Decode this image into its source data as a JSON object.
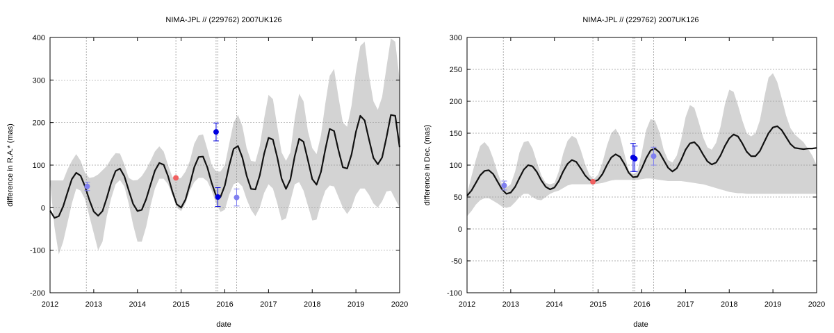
{
  "chart_data": [
    {
      "type": "line",
      "title": "NIMA-JPL // (229762) 2007UK126",
      "xlabel": "date",
      "ylabel": "difference in R.A.* (mas)",
      "xlim": [
        2012,
        2020
      ],
      "ylim": [
        -200,
        400
      ],
      "xticks": [
        2012,
        2013,
        2014,
        2015,
        2016,
        2017,
        2018,
        2019,
        2020
      ],
      "yticks": [
        -200,
        -100,
        0,
        100,
        200,
        300,
        400
      ],
      "grid": true,
      "legend": "none",
      "colors": {
        "band": "#d3d3d3",
        "line": "#111111",
        "obs_dark": "#0000e0",
        "obs_light": "#8080f0",
        "ref": "#f06060"
      },
      "vlines": [
        2012.83,
        2014.88,
        2015.8,
        2015.84,
        2016.27
      ],
      "model": {
        "x": [
          2012.0,
          2012.1,
          2012.2,
          2012.3,
          2012.4,
          2012.5,
          2012.6,
          2012.7,
          2012.8,
          2012.9,
          2013.0,
          2013.1,
          2013.2,
          2013.3,
          2013.4,
          2013.5,
          2013.6,
          2013.7,
          2013.8,
          2013.9,
          2014.0,
          2014.1,
          2014.2,
          2014.3,
          2014.4,
          2014.5,
          2014.6,
          2014.7,
          2014.8,
          2014.9,
          2015.0,
          2015.1,
          2015.2,
          2015.3,
          2015.4,
          2015.5,
          2015.6,
          2015.7,
          2015.8,
          2015.9,
          2016.0,
          2016.1,
          2016.2,
          2016.3,
          2016.4,
          2016.5,
          2016.6,
          2016.7,
          2016.8,
          2016.9,
          2017.0,
          2017.1,
          2017.2,
          2017.3,
          2017.4,
          2017.5,
          2017.6,
          2017.7,
          2017.8,
          2017.9,
          2018.0,
          2018.1,
          2018.2,
          2018.3,
          2018.4,
          2018.5,
          2018.6,
          2018.7,
          2018.8,
          2018.9,
          2019.0,
          2019.1,
          2019.2,
          2019.3,
          2019.4,
          2019.5,
          2019.6,
          2019.7,
          2019.8,
          2019.9,
          2020.0
        ],
        "y": [
          -7,
          -24,
          -20,
          3,
          36,
          67,
          82,
          75,
          50,
          18,
          -9,
          -19,
          -8,
          23,
          59,
          86,
          92,
          74,
          41,
          9,
          -8,
          -5,
          20,
          54,
          87,
          105,
          101,
          74,
          38,
          8,
          0,
          19,
          55,
          95,
          119,
          120,
          95,
          58,
          28,
          25,
          52,
          99,
          138,
          145,
          118,
          75,
          44,
          43,
          76,
          127,
          164,
          160,
          118,
          68,
          44,
          66,
          121,
          162,
          155,
          112,
          67,
          54,
          84,
          137,
          185,
          180,
          135,
          95,
          92,
          125,
          178,
          216,
          205,
          160,
          117,
          102,
          118,
          165,
          218,
          216,
          142
        ]
      },
      "band": {
        "upper": [
          64,
          64,
          64,
          64,
          90,
          110,
          126,
          110,
          82,
          70,
          72,
          78,
          88,
          98,
          115,
          128,
          127,
          102,
          70,
          64,
          65,
          74,
          90,
          110,
          132,
          144,
          132,
          100,
          72,
          68,
          70,
          85,
          110,
          150,
          170,
          172,
          138,
          100,
          85,
          85,
          100,
          150,
          200,
          218,
          192,
          140,
          110,
          108,
          145,
          210,
          265,
          255,
          190,
          130,
          110,
          130,
          210,
          268,
          250,
          180,
          140,
          126,
          170,
          245,
          310,
          326,
          260,
          200,
          190,
          240,
          320,
          380,
          390,
          310,
          250,
          230,
          260,
          330,
          398,
          390,
          300
        ],
        "lower": [
          62,
          -45,
          -110,
          -80,
          -35,
          10,
          45,
          40,
          20,
          -20,
          -60,
          -100,
          -80,
          -20,
          22,
          55,
          65,
          50,
          10,
          -40,
          -80,
          -80,
          -45,
          5,
          45,
          68,
          68,
          55,
          30,
          0,
          -8,
          10,
          40,
          60,
          70,
          70,
          62,
          40,
          10,
          -10,
          -5,
          30,
          55,
          60,
          50,
          20,
          -5,
          -20,
          0,
          35,
          55,
          45,
          10,
          -30,
          -25,
          15,
          55,
          60,
          40,
          5,
          -30,
          -28,
          10,
          40,
          52,
          50,
          25,
          0,
          -15,
          0,
          30,
          45,
          45,
          30,
          10,
          0,
          15,
          38,
          40,
          20,
          0
        ]
      },
      "observations": [
        {
          "x": 2012.85,
          "y": 50,
          "err": 10,
          "style": "light"
        },
        {
          "x": 2014.88,
          "y": 70,
          "err": 0,
          "style": "ref"
        },
        {
          "x": 2015.8,
          "y": 178,
          "err": 21,
          "style": "dark"
        },
        {
          "x": 2015.84,
          "y": 25,
          "err": 22,
          "style": "dark"
        },
        {
          "x": 2016.27,
          "y": 24,
          "err": 20,
          "style": "light"
        }
      ]
    },
    {
      "type": "line",
      "title": "NIMA-JPL // (229762) 2007UK126",
      "xlabel": "date",
      "ylabel": "difference in Dec. (mas)",
      "xlim": [
        2012,
        2020
      ],
      "ylim": [
        -100,
        300
      ],
      "xticks": [
        2012,
        2013,
        2014,
        2015,
        2016,
        2017,
        2018,
        2019,
        2020
      ],
      "yticks": [
        -100,
        -50,
        0,
        50,
        100,
        150,
        200,
        250,
        300
      ],
      "grid": true,
      "legend": "none",
      "colors": {
        "band": "#d3d3d3",
        "line": "#111111",
        "obs_dark": "#0000e0",
        "obs_light": "#8080f0",
        "ref": "#f06060"
      },
      "vlines": [
        2012.83,
        2014.88,
        2015.8,
        2015.84,
        2016.27
      ],
      "model": {
        "x": [
          2012.0,
          2012.1,
          2012.2,
          2012.3,
          2012.4,
          2012.5,
          2012.6,
          2012.7,
          2012.8,
          2012.9,
          2013.0,
          2013.1,
          2013.2,
          2013.3,
          2013.4,
          2013.5,
          2013.6,
          2013.7,
          2013.8,
          2013.9,
          2014.0,
          2014.1,
          2014.2,
          2014.3,
          2014.4,
          2014.5,
          2014.6,
          2014.7,
          2014.8,
          2014.9,
          2015.0,
          2015.1,
          2015.2,
          2015.3,
          2015.4,
          2015.5,
          2015.6,
          2015.7,
          2015.8,
          2015.9,
          2016.0,
          2016.1,
          2016.2,
          2016.3,
          2016.4,
          2016.5,
          2016.6,
          2016.7,
          2016.8,
          2016.9,
          2017.0,
          2017.1,
          2017.2,
          2017.3,
          2017.4,
          2017.5,
          2017.6,
          2017.7,
          2017.8,
          2017.9,
          2018.0,
          2018.1,
          2018.2,
          2018.3,
          2018.4,
          2018.5,
          2018.6,
          2018.7,
          2018.8,
          2018.9,
          2019.0,
          2019.1,
          2019.2,
          2019.3,
          2019.4,
          2019.5,
          2019.6,
          2019.7,
          2019.8,
          2019.9,
          2020.0
        ],
        "y": [
          52,
          60,
          72,
          84,
          91,
          92,
          86,
          74,
          62,
          55,
          57,
          66,
          80,
          93,
          100,
          98,
          89,
          76,
          66,
          62,
          65,
          75,
          90,
          102,
          108,
          105,
          95,
          84,
          77,
          74,
          77,
          86,
          100,
          112,
          117,
          113,
          102,
          88,
          81,
          82,
          95,
          111,
          123,
          126,
          120,
          108,
          96,
          90,
          95,
          108,
          124,
          134,
          136,
          129,
          117,
          106,
          101,
          104,
          115,
          130,
          142,
          148,
          145,
          134,
          121,
          114,
          114,
          122,
          136,
          150,
          159,
          161,
          155,
          144,
          133,
          127,
          126,
          125,
          126,
          126,
          127
        ]
      },
      "band": {
        "upper": [
          55,
          82,
          108,
          130,
          136,
          128,
          110,
          88,
          70,
          65,
          70,
          90,
          120,
          136,
          138,
          126,
          104,
          84,
          72,
          70,
          72,
          90,
          118,
          138,
          146,
          142,
          124,
          102,
          85,
          78,
          85,
          104,
          130,
          150,
          157,
          145,
          118,
          92,
          85,
          90,
          120,
          155,
          172,
          170,
          152,
          124,
          108,
          104,
          115,
          140,
          175,
          194,
          190,
          168,
          144,
          128,
          124,
          135,
          160,
          195,
          218,
          215,
          194,
          170,
          150,
          145,
          150,
          170,
          205,
          237,
          244,
          230,
          205,
          178,
          158,
          148,
          142,
          136,
          126,
          115,
          100
        ],
        "lower": [
          20,
          28,
          38,
          45,
          48,
          48,
          44,
          40,
          35,
          33,
          35,
          42,
          50,
          55,
          55,
          50,
          46,
          45,
          50,
          55,
          58,
          60,
          64,
          68,
          70,
          70,
          70,
          70,
          70,
          70,
          71,
          72,
          74,
          76,
          77,
          77,
          77,
          77,
          77,
          77,
          78,
          79,
          79,
          78,
          77,
          76,
          75,
          75,
          75,
          75,
          74,
          73,
          72,
          71,
          70,
          68,
          66,
          64,
          62,
          60,
          58,
          57,
          56,
          56,
          55,
          55,
          55,
          55,
          55,
          55,
          55,
          55,
          55,
          55,
          55,
          55,
          55,
          55,
          55,
          55,
          55
        ]
      },
      "observations": [
        {
          "x": 2012.85,
          "y": 68,
          "err": 7,
          "style": "light"
        },
        {
          "x": 2014.88,
          "y": 74,
          "err": 0,
          "style": "ref"
        },
        {
          "x": 2015.8,
          "y": 112,
          "err": 22,
          "style": "dark"
        },
        {
          "x": 2015.84,
          "y": 110,
          "err": 20,
          "style": "dark"
        },
        {
          "x": 2016.27,
          "y": 114,
          "err": 14,
          "style": "light"
        }
      ]
    }
  ]
}
